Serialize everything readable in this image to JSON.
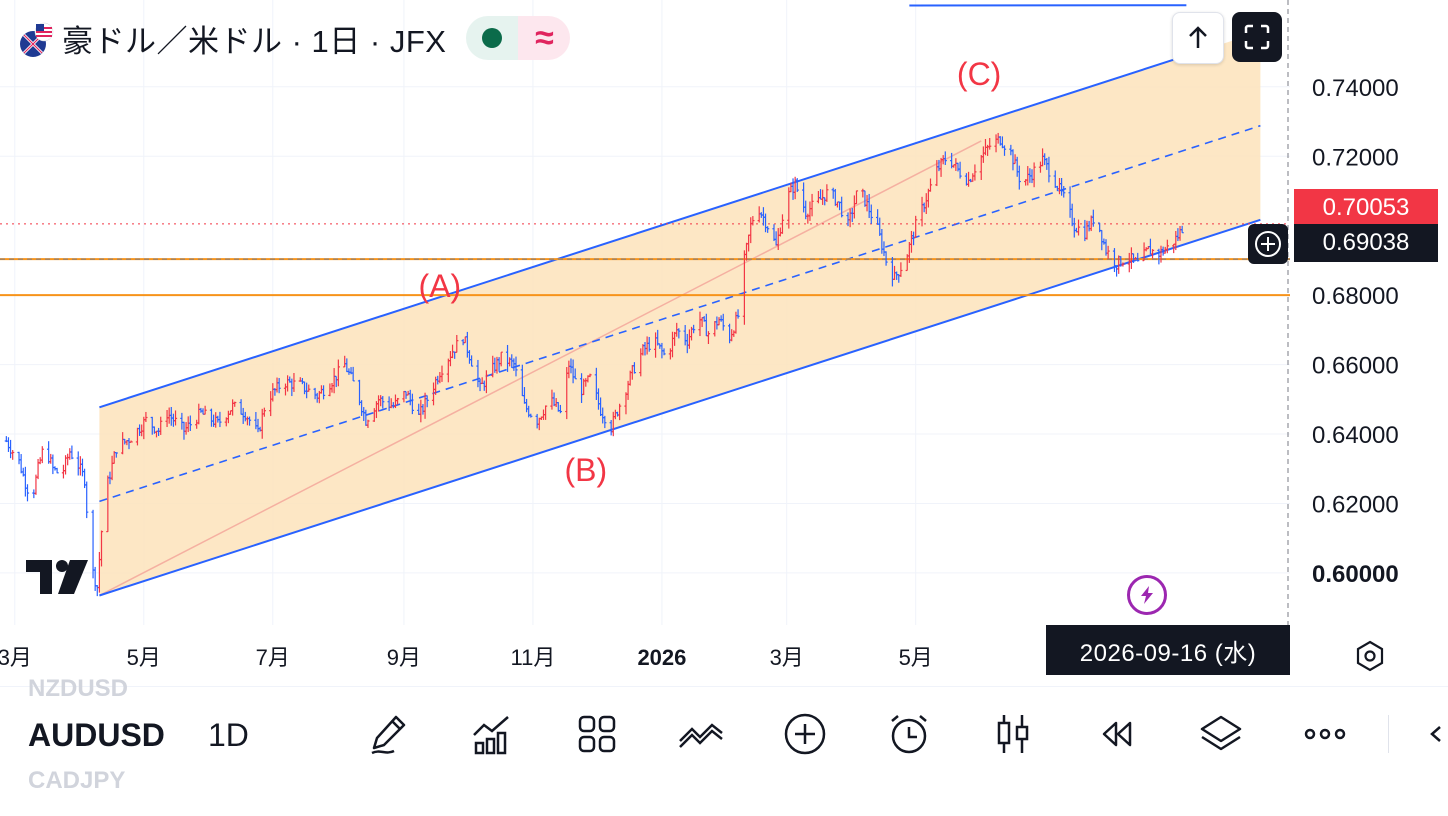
{
  "header": {
    "title": "豪ドル／米ドル · 1日 · JFX",
    "status_wave": "≈"
  },
  "price_labels": {
    "last": "0.70053",
    "crosshair": "0.69038"
  },
  "crosshair_date": "2026-09-16 (水)",
  "toolbar": {
    "symbol": "AUDUSD",
    "interval": "1D",
    "ghost_prev_symbol": "NZDUSD",
    "ghost_next_symbol": "CADJPY",
    "tools": [
      "drawing-tools",
      "indicators",
      "layouts",
      "compare",
      "add",
      "alerts",
      "chart-type",
      "replay",
      "objects-tree",
      "more"
    ]
  },
  "chart_data": {
    "type": "ohlc-bars",
    "symbol": "AUDUSD",
    "interval": "1D",
    "ylim": [
      0.585,
      0.765
    ],
    "y_ticks": [
      "0.74000",
      "0.72000",
      "0.68000",
      "0.66000",
      "0.64000",
      "0.62000",
      "0.60000"
    ],
    "y_tick_values": [
      0.74,
      0.72,
      0.68,
      0.66,
      0.64,
      0.62,
      0.6
    ],
    "x_ticks": [
      "3月",
      "5月",
      "7月",
      "9月",
      "11月",
      "2026",
      "3月",
      "5月"
    ],
    "x_tick_dates": [
      "2025-03-01",
      "2025-05-01",
      "2025-07-01",
      "2025-09-01",
      "2025-11-01",
      "2026-01-01",
      "2026-03-01",
      "2026-05-01"
    ],
    "x_range": [
      "2025-02-22",
      "2026-10-25"
    ],
    "up_color": "#f23645",
    "down_color": "#2962ff",
    "path": [
      [
        "2025-02-25",
        0.638
      ],
      [
        "2025-03-03",
        0.632
      ],
      [
        "2025-03-06",
        0.626
      ],
      [
        "2025-03-09",
        0.621
      ],
      [
        "2025-03-12",
        0.63
      ],
      [
        "2025-03-15",
        0.637
      ],
      [
        "2025-03-19",
        0.63
      ],
      [
        "2025-03-23",
        0.628
      ],
      [
        "2025-03-27",
        0.635
      ],
      [
        "2025-03-31",
        0.631
      ],
      [
        "2025-04-03",
        0.627
      ],
      [
        "2025-04-05",
        0.61
      ],
      [
        "2025-04-07",
        0.6
      ],
      [
        "2025-04-09",
        0.596
      ],
      [
        "2025-04-11",
        0.612
      ],
      [
        "2025-04-14",
        0.626
      ],
      [
        "2025-04-18",
        0.636
      ],
      [
        "2025-04-25",
        0.639
      ],
      [
        "2025-05-02",
        0.644
      ],
      [
        "2025-05-08",
        0.641
      ],
      [
        "2025-05-12",
        0.646
      ],
      [
        "2025-05-20",
        0.641
      ],
      [
        "2025-05-28",
        0.646
      ],
      [
        "2025-06-05",
        0.643
      ],
      [
        "2025-06-12",
        0.648
      ],
      [
        "2025-06-18",
        0.646
      ],
      [
        "2025-06-24",
        0.64
      ],
      [
        "2025-06-28",
        0.65
      ],
      [
        "2025-07-06",
        0.655
      ],
      [
        "2025-07-14",
        0.654
      ],
      [
        "2025-07-22",
        0.651
      ],
      [
        "2025-07-30",
        0.656
      ],
      [
        "2025-08-04",
        0.66
      ],
      [
        "2025-08-10",
        0.652
      ],
      [
        "2025-08-14",
        0.644
      ],
      [
        "2025-08-20",
        0.65
      ],
      [
        "2025-08-27",
        0.648
      ],
      [
        "2025-09-02",
        0.652
      ],
      [
        "2025-09-08",
        0.645
      ],
      [
        "2025-09-12",
        0.65
      ],
      [
        "2025-09-18",
        0.658
      ],
      [
        "2025-09-24",
        0.664
      ],
      [
        "2025-09-29",
        0.668
      ],
      [
        "2025-10-03",
        0.661
      ],
      [
        "2025-10-07",
        0.653
      ],
      [
        "2025-10-11",
        0.657
      ],
      [
        "2025-10-17",
        0.662
      ],
      [
        "2025-10-23",
        0.66
      ],
      [
        "2025-10-28",
        0.648
      ],
      [
        "2025-11-03",
        0.644
      ],
      [
        "2025-11-09",
        0.65
      ],
      [
        "2025-11-14",
        0.646
      ],
      [
        "2025-11-18",
        0.66
      ],
      [
        "2025-11-23",
        0.652
      ],
      [
        "2025-11-28",
        0.656
      ],
      [
        "2025-12-03",
        0.647
      ],
      [
        "2025-12-08",
        0.642
      ],
      [
        "2025-12-13",
        0.65
      ],
      [
        "2025-12-18",
        0.658
      ],
      [
        "2025-12-23",
        0.664
      ],
      [
        "2025-12-28",
        0.667
      ],
      [
        "2026-01-03",
        0.662
      ],
      [
        "2026-01-08",
        0.67
      ],
      [
        "2026-01-13",
        0.667
      ],
      [
        "2026-01-18",
        0.674
      ],
      [
        "2026-01-23",
        0.669
      ],
      [
        "2026-01-28",
        0.673
      ],
      [
        "2026-02-02",
        0.668
      ],
      [
        "2026-02-06",
        0.674
      ],
      [
        "2026-02-09",
        0.69
      ],
      [
        "2026-02-12",
        0.7
      ],
      [
        "2026-02-15",
        0.706
      ],
      [
        "2026-02-20",
        0.7
      ],
      [
        "2026-02-24",
        0.694
      ],
      [
        "2026-03-01",
        0.708
      ],
      [
        "2026-03-05",
        0.712
      ],
      [
        "2026-03-10",
        0.704
      ],
      [
        "2026-03-16",
        0.707
      ],
      [
        "2026-03-21",
        0.71
      ],
      [
        "2026-03-26",
        0.706
      ],
      [
        "2026-03-30",
        0.7
      ],
      [
        "2026-04-04",
        0.711
      ],
      [
        "2026-04-08",
        0.706
      ],
      [
        "2026-04-13",
        0.699
      ],
      [
        "2026-04-17",
        0.69
      ],
      [
        "2026-04-21",
        0.685
      ],
      [
        "2026-04-26",
        0.69
      ],
      [
        "2026-05-01",
        0.7
      ],
      [
        "2026-05-06",
        0.708
      ],
      [
        "2026-05-11",
        0.716
      ],
      [
        "2026-05-16",
        0.72
      ],
      [
        "2026-05-21",
        0.716
      ],
      [
        "2026-05-26",
        0.713
      ],
      [
        "2026-05-31",
        0.719
      ],
      [
        "2026-06-05",
        0.723
      ],
      [
        "2026-06-10",
        0.725
      ],
      [
        "2026-06-15",
        0.721
      ],
      [
        "2026-06-20",
        0.712
      ],
      [
        "2026-06-25",
        0.715
      ],
      [
        "2026-06-30",
        0.719
      ],
      [
        "2026-07-05",
        0.714
      ],
      [
        "2026-07-10",
        0.708
      ],
      [
        "2026-07-15",
        0.7
      ],
      [
        "2026-07-20",
        0.698
      ],
      [
        "2026-07-25",
        0.703
      ],
      [
        "2026-07-30",
        0.693
      ],
      [
        "2026-08-04",
        0.689
      ],
      [
        "2026-08-09",
        0.691
      ],
      [
        "2026-08-14",
        0.689
      ],
      [
        "2026-08-19",
        0.693
      ],
      [
        "2026-08-24",
        0.692
      ],
      [
        "2026-08-29",
        0.694
      ],
      [
        "2026-09-02",
        0.697
      ],
      [
        "2026-09-05",
        0.7005
      ]
    ],
    "last_price": 0.70053,
    "crosshair": {
      "date": "2026-09-16",
      "price": 0.69038
    },
    "horizontal_lines": [
      {
        "price": 0.69038,
        "color": "#f7931a"
      },
      {
        "price": 0.68,
        "color": "#f7931a"
      }
    ],
    "top_line": {
      "from": [
        "2026-04-28",
        0.7634
      ],
      "to": [
        "2026-09-06",
        0.7635
      ],
      "color": "#2962ff"
    },
    "parallel_channel": {
      "p1": [
        "2025-04-10",
        0.5935
      ],
      "p2": [
        "2026-10-11",
        0.7017
      ],
      "offset": 0.0542,
      "right_edge": "2026-10-11",
      "extend_upper_to": "2026-09-06",
      "fill": "#fde3bb",
      "line_color": "#2962ff"
    },
    "trend_line": {
      "from": [
        "2025-04-10",
        0.5935
      ],
      "to": [
        "2026-06-01",
        0.7244
      ],
      "color": "#f5b0a1"
    },
    "annotations": [
      {
        "text": "(A)",
        "date": "2025-09-18",
        "price": 0.6795,
        "color": "#f23645"
      },
      {
        "text": "(B)",
        "date": "2025-11-26",
        "price": 0.6265,
        "color": "#f23645"
      },
      {
        "text": "(C)",
        "date": "2026-05-31",
        "price": 0.7405,
        "color": "#f23645"
      }
    ]
  }
}
